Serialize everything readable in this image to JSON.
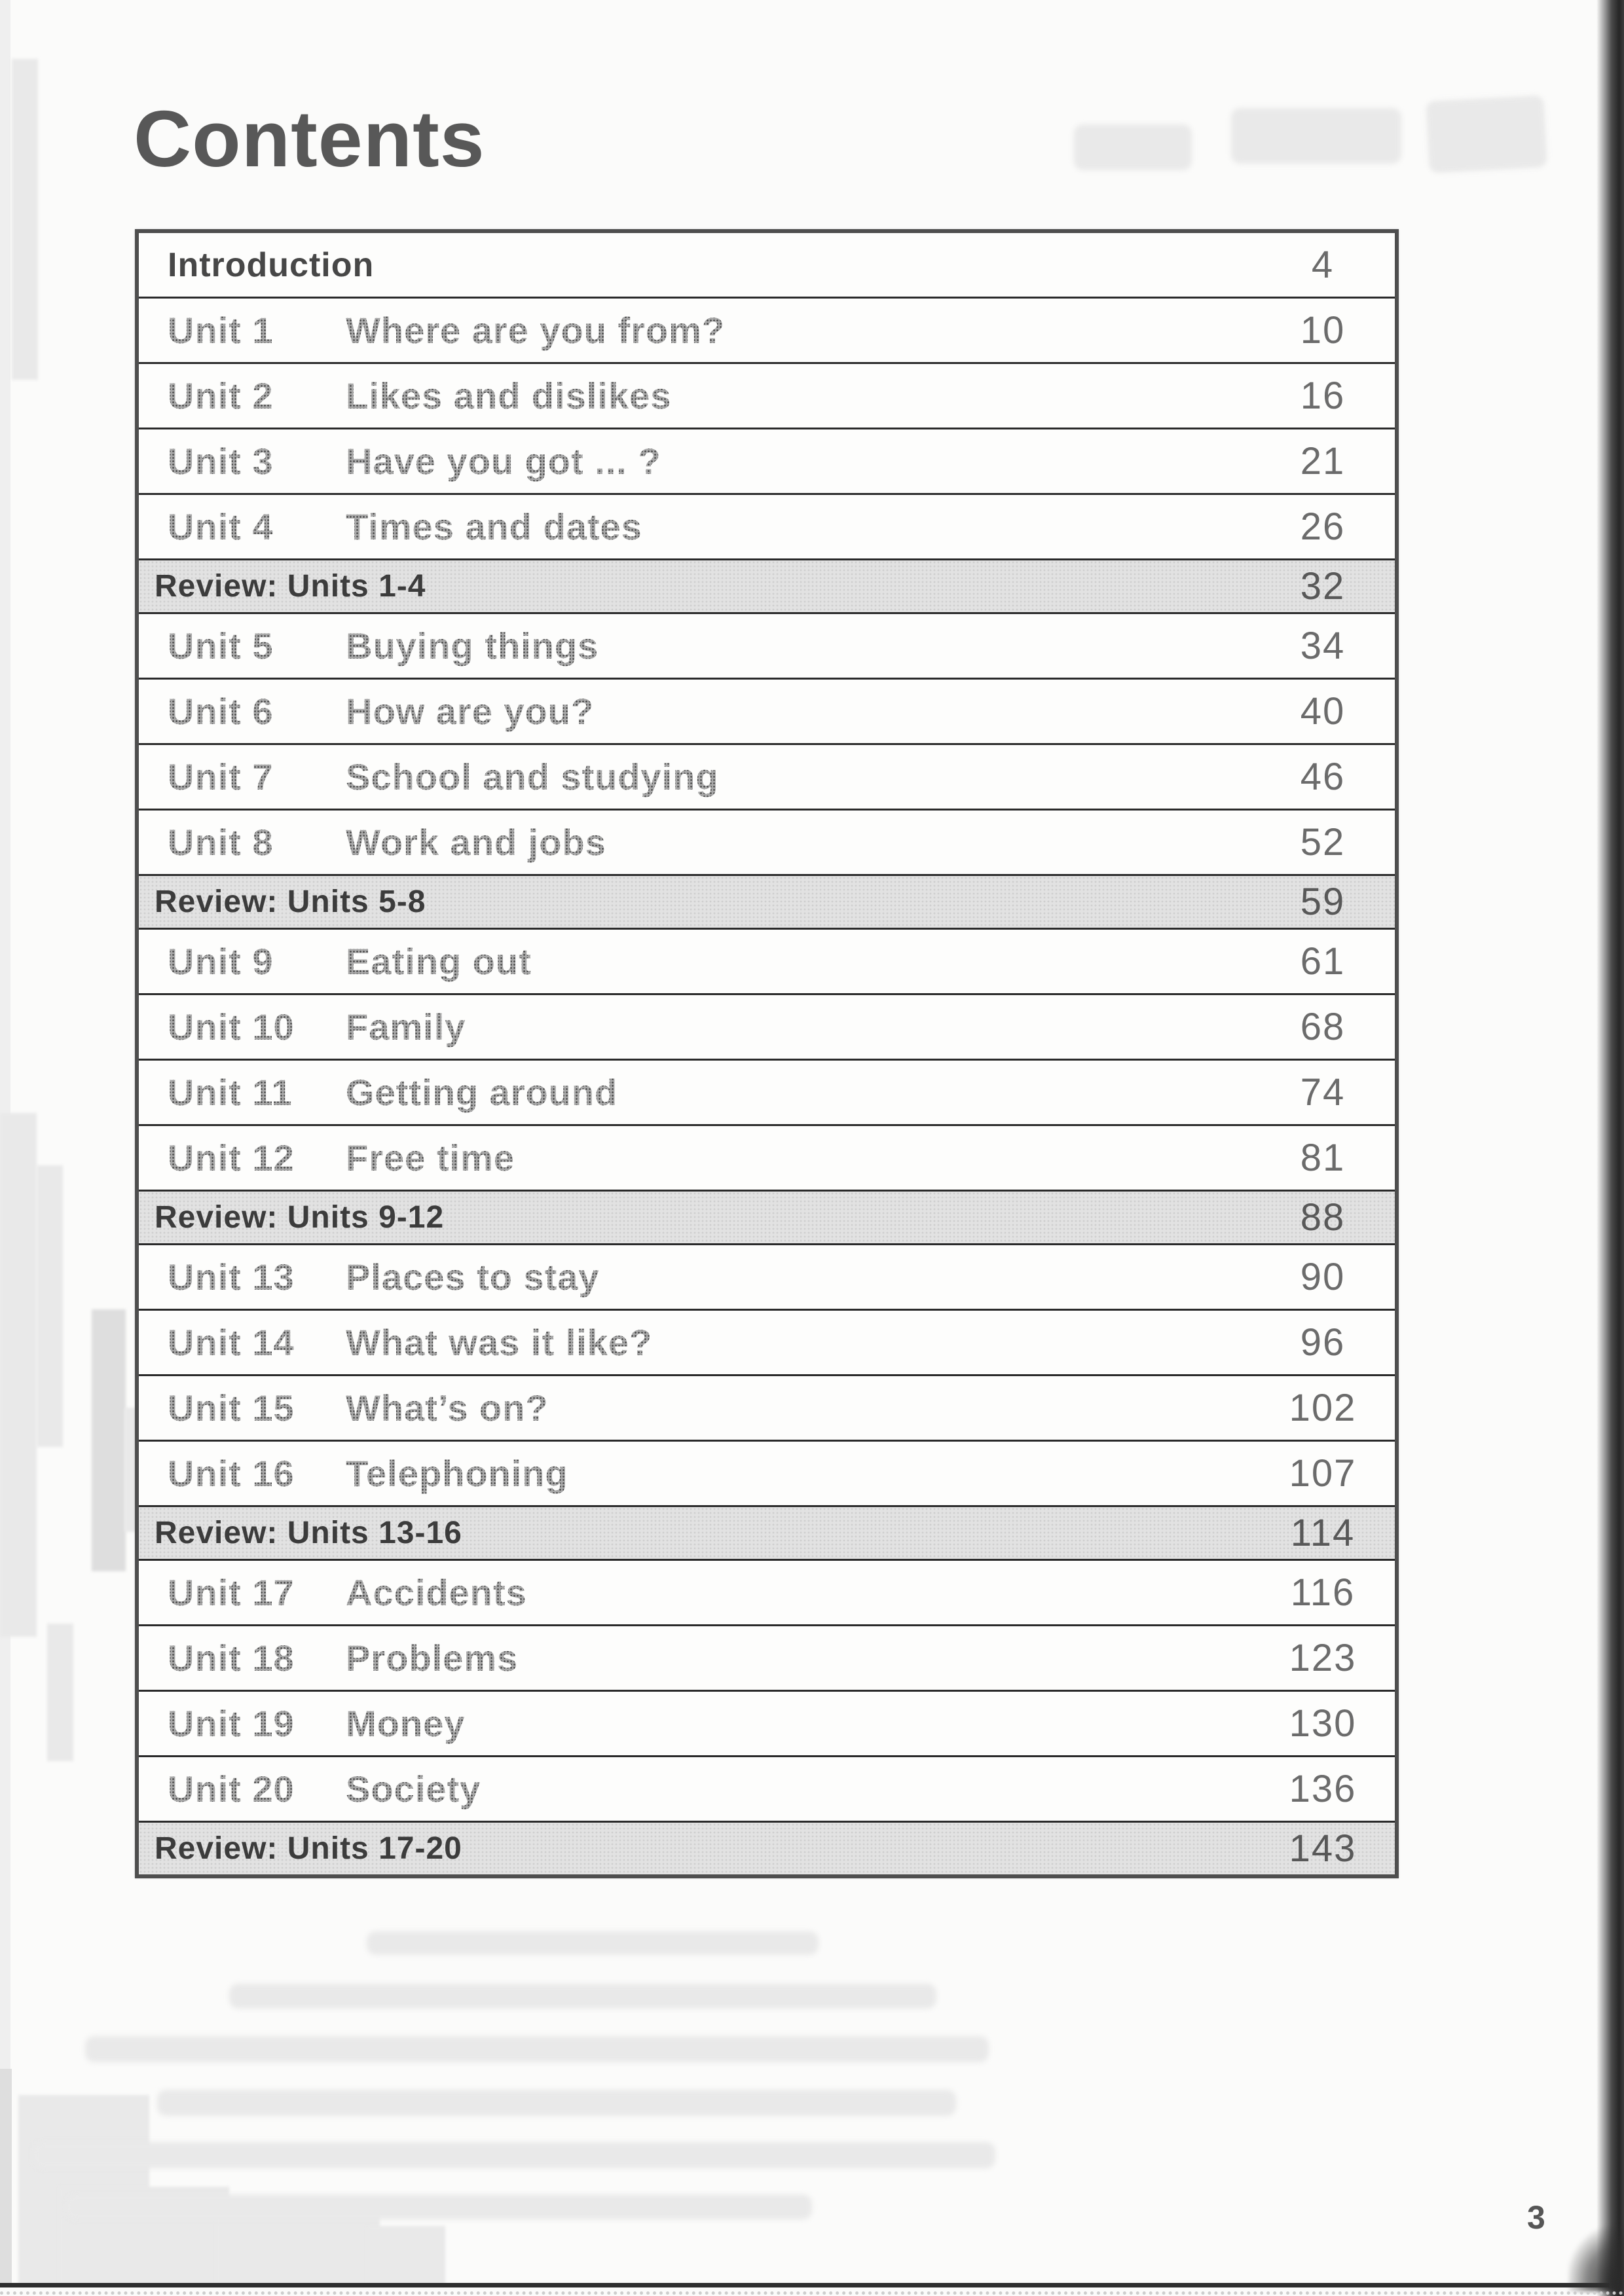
{
  "page": {
    "title": "Contents",
    "page_number": "3"
  },
  "table": {
    "rows": [
      {
        "type": "intro",
        "label": "Introduction",
        "page": "4"
      },
      {
        "type": "unit",
        "unit": "Unit 1",
        "title": "Where are you from?",
        "page": "10"
      },
      {
        "type": "unit",
        "unit": "Unit 2",
        "title": "Likes and dislikes",
        "page": "16"
      },
      {
        "type": "unit",
        "unit": "Unit 3",
        "title": "Have you got ... ?",
        "page": "21"
      },
      {
        "type": "unit",
        "unit": "Unit 4",
        "title": "Times and dates",
        "page": "26"
      },
      {
        "type": "review",
        "label": "Review: Units 1-4",
        "page": "32"
      },
      {
        "type": "unit",
        "unit": "Unit 5",
        "title": "Buying things",
        "page": "34"
      },
      {
        "type": "unit",
        "unit": "Unit 6",
        "title": "How are you?",
        "page": "40"
      },
      {
        "type": "unit",
        "unit": "Unit 7",
        "title": "School and studying",
        "page": "46"
      },
      {
        "type": "unit",
        "unit": "Unit 8",
        "title": "Work and jobs",
        "page": "52"
      },
      {
        "type": "review",
        "label": "Review: Units 5-8",
        "page": "59"
      },
      {
        "type": "unit",
        "unit": "Unit 9",
        "title": "Eating out",
        "page": "61"
      },
      {
        "type": "unit",
        "unit": "Unit 10",
        "title": "Family",
        "page": "68"
      },
      {
        "type": "unit",
        "unit": "Unit 11",
        "title": "Getting around",
        "page": "74"
      },
      {
        "type": "unit",
        "unit": "Unit 12",
        "title": "Free time",
        "page": "81"
      },
      {
        "type": "review",
        "label": "Review: Units 9-12",
        "page": "88"
      },
      {
        "type": "unit",
        "unit": "Unit 13",
        "title": "Places to stay",
        "page": "90"
      },
      {
        "type": "unit",
        "unit": "Unit 14",
        "title": "What was it like?",
        "page": "96"
      },
      {
        "type": "unit",
        "unit": "Unit 15",
        "title": "What’s on?",
        "page": "102"
      },
      {
        "type": "unit",
        "unit": "Unit 16",
        "title": "Telephoning",
        "page": "107"
      },
      {
        "type": "review",
        "label": "Review: Units 13-16",
        "page": "114",
        "page_faded": true
      },
      {
        "type": "unit",
        "unit": "Unit 17",
        "title": "Accidents",
        "page": "116"
      },
      {
        "type": "unit",
        "unit": "Unit 18",
        "title": "Problems",
        "page": "123"
      },
      {
        "type": "unit",
        "unit": "Unit 19",
        "title": "Money",
        "page": "130"
      },
      {
        "type": "unit",
        "unit": "Unit 20",
        "title": "Society",
        "page": "136"
      },
      {
        "type": "review",
        "label": "Review: Units 17-20",
        "page": "143",
        "page_faded": true
      }
    ]
  }
}
